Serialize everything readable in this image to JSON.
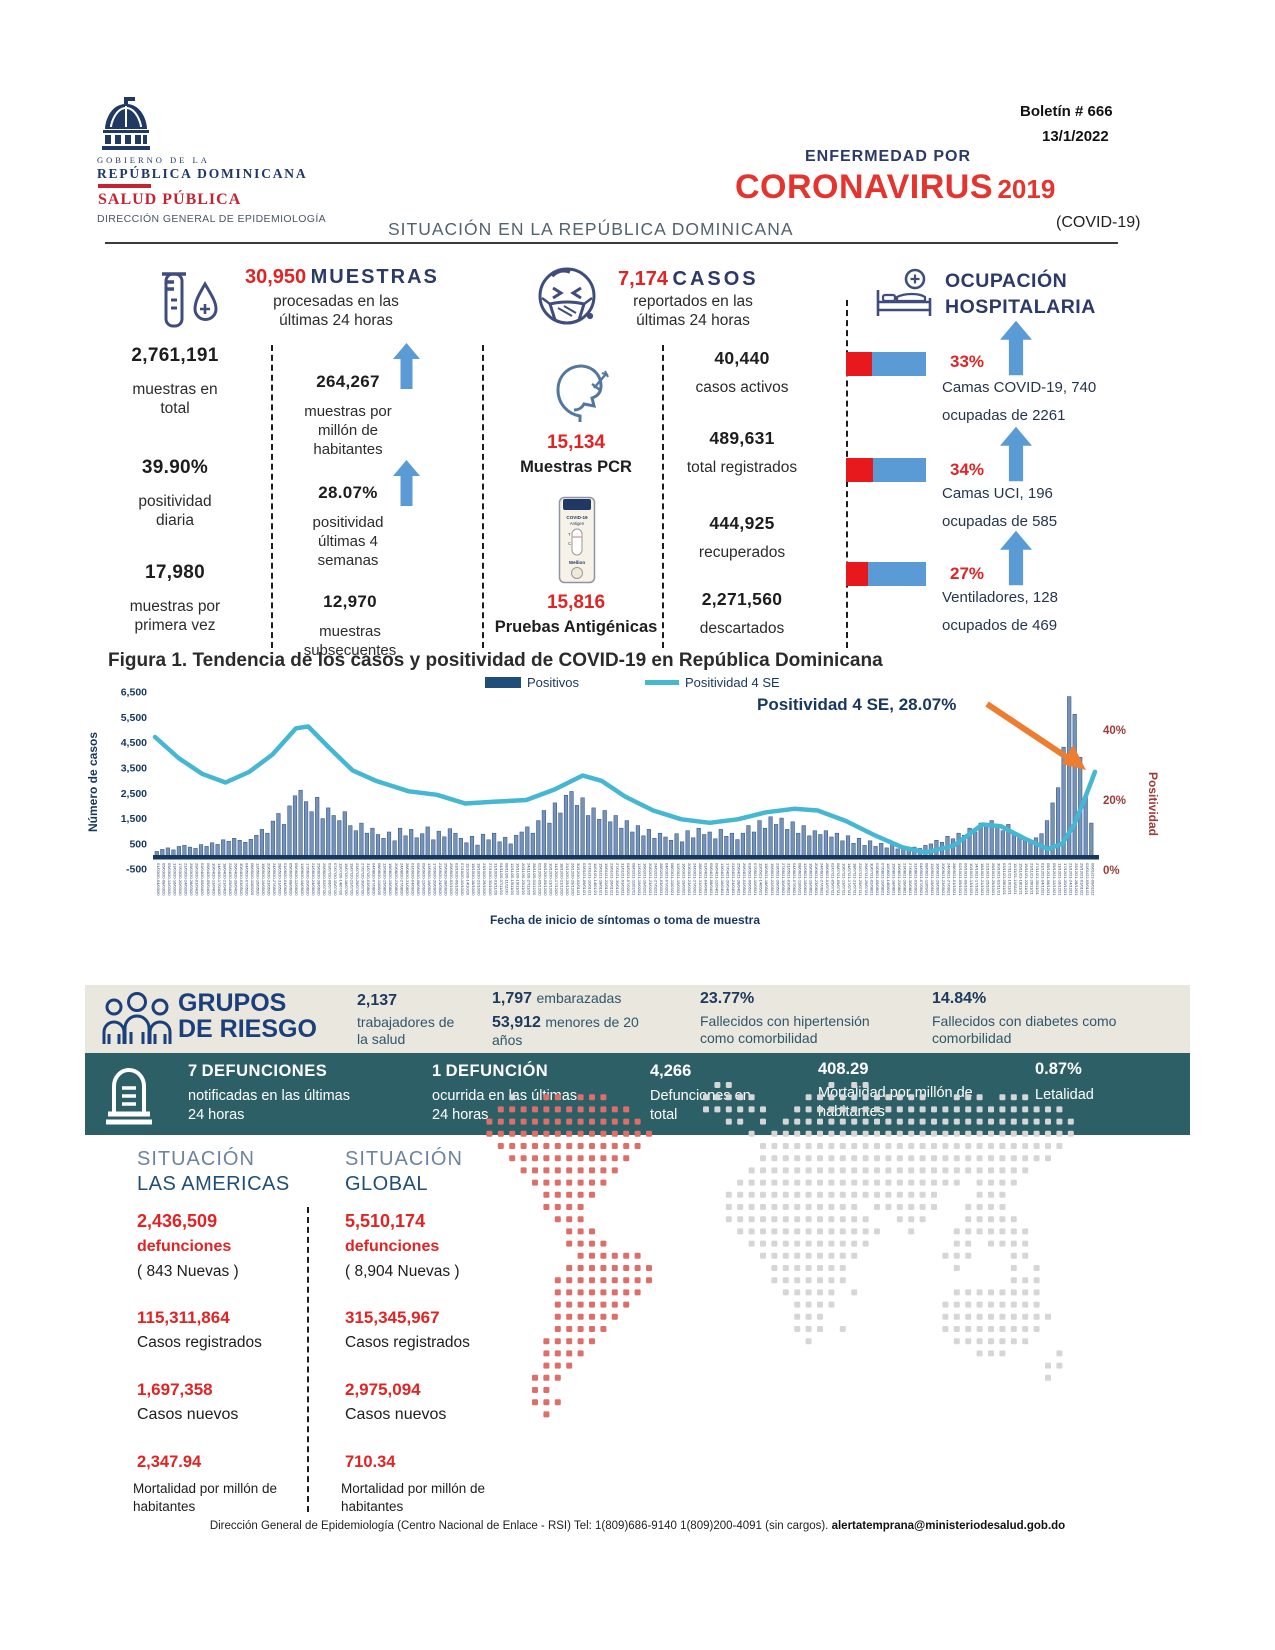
{
  "header": {
    "gov_line1": "GOBIERNO DE LA",
    "gov_line2": "REPÚBLICA DOMINICANA",
    "dept": "SALUD PÚBLICA",
    "subdept": "DIRECCIÓN GENERAL DE EPIDEMIOLOGÍA",
    "bulletin": "Boletín # 666",
    "date": "13/1/2022",
    "disease_line1": "ENFERMEDAD POR",
    "disease_line2": "CORONAVIRUS",
    "disease_year": "2019",
    "covid": "(COVID-19)",
    "situation_title": "SITUACIÓN EN LA REPÚBLICA DOMINICANA"
  },
  "muestras": {
    "headline_value": "30,950",
    "headline_label": "MUESTRAS",
    "headline_sub": "procesadas en las últimas 24 horas",
    "total_value": "2,761,191",
    "total_label": "muestras en total",
    "daily_pos_value": "39.90%",
    "daily_pos_label": "positividad diaria",
    "first_value": "17,980",
    "first_label": "muestras por primera vez",
    "per_million_value": "264,267",
    "per_million_label": "muestras por millón de habitantes",
    "pos4w_value": "28.07%",
    "pos4w_label": "positividad últimas 4 semanas",
    "subseq_value": "12,970",
    "subseq_label": "muestras subsecuentes"
  },
  "casos": {
    "headline_value": "7,174",
    "headline_label": "CASOS",
    "headline_sub": "reportados en las últimas 24 horas",
    "pcr_value": "15,134",
    "pcr_label": "Muestras PCR",
    "antigen_value": "15,816",
    "antigen_label": "Pruebas Antigénicas",
    "right": [
      {
        "value": "40,440",
        "label": "casos activos"
      },
      {
        "value": "489,631",
        "label": "total registrados"
      },
      {
        "value": "444,925",
        "label": "recuperados"
      },
      {
        "value": "2,271,560",
        "label": "descartados"
      }
    ]
  },
  "ocupacion": {
    "title": "OCUPACIÓN HOSPITALARIA",
    "items": [
      {
        "pct": "33%",
        "pct_value": 33,
        "line1": "Camas COVID-19,  740",
        "line2": "ocupadas de 2261"
      },
      {
        "pct": "34%",
        "pct_value": 34,
        "line1": "Camas UCI,  196",
        "line2": "ocupadas de 585"
      },
      {
        "pct": "27%",
        "pct_value": 27,
        "line1": "Ventiladores, 128",
        "line2": "ocupados de 469"
      }
    ]
  },
  "chart_data": {
    "type": "bar+line",
    "title": "Figura 1. Tendencia de los casos y positividad de COVID-19 en República Dominicana",
    "ylabel": "Número de casos",
    "y2label": "Positividad",
    "xlabel": "Fecha de inicio de síntomas o toma de muestra",
    "legend": [
      "Positivos",
      "Positividad 4 SE"
    ],
    "annotation": "Positividad 4 SE, 28.07%",
    "y_ticks": [
      "6,500",
      "5,500",
      "4,500",
      "3,500",
      "2,500",
      "1,500",
      "500",
      "-500"
    ],
    "y_tick_values": [
      6500,
      5500,
      4500,
      3500,
      2500,
      1500,
      500,
      -500
    ],
    "y2_ticks": [
      "40%",
      "20%",
      "0%"
    ],
    "y2_tick_values": [
      40,
      20,
      0
    ],
    "x_range": "fechas diarias mar 2020 - ene 2022",
    "bars_name": "Positivos",
    "bars": [
      180,
      260,
      320,
      240,
      380,
      420,
      350,
      300,
      450,
      380,
      520,
      460,
      640,
      580,
      700,
      620,
      540,
      660,
      820,
      1050,
      900,
      1380,
      1680,
      1250,
      1980,
      2380,
      2600,
      2150,
      1750,
      2320,
      1480,
      1900,
      1600,
      1400,
      1750,
      1200,
      1000,
      1300,
      900,
      1100,
      850,
      700,
      950,
      600,
      1100,
      800,
      1050,
      720,
      880,
      1150,
      640,
      980,
      760,
      1080,
      900,
      700,
      520,
      780,
      430,
      860,
      640,
      900,
      560,
      740,
      480,
      820,
      950,
      1150,
      900,
      1400,
      1800,
      1300,
      2100,
      1700,
      2400,
      2550,
      2000,
      2300,
      1600,
      1900,
      1450,
      1800,
      1350,
      1600,
      1100,
      1400,
      950,
      1200,
      800,
      1050,
      700,
      900,
      750,
      620,
      880,
      560,
      1000,
      720,
      1100,
      850,
      950,
      680,
      1050,
      780,
      900,
      650,
      900,
      1200,
      950,
      1400,
      1100,
      1550,
      1250,
      1500,
      1050,
      1350,
      900,
      1200,
      800,
      1000,
      850,
      1000,
      750,
      900,
      600,
      800,
      500,
      700,
      420,
      600,
      380,
      500,
      320,
      450,
      280,
      380,
      250,
      350,
      300,
      420,
      480,
      620,
      540,
      780,
      680,
      900,
      820,
      1100,
      950,
      1300,
      1150,
      1400,
      1200,
      1000,
      1250,
      950,
      800,
      680,
      580,
      720,
      880,
      1400,
      2100,
      2700,
      4300,
      6300,
      5600,
      3900,
      2400,
      1300
    ],
    "line_name": "Positividad 4 SE",
    "line_points": [
      [
        0,
        38
      ],
      [
        0.025,
        32
      ],
      [
        0.05,
        27.5
      ],
      [
        0.075,
        25
      ],
      [
        0.1,
        28
      ],
      [
        0.125,
        33
      ],
      [
        0.15,
        40.5
      ],
      [
        0.163,
        41
      ],
      [
        0.185,
        35
      ],
      [
        0.21,
        28.5
      ],
      [
        0.235,
        25.5
      ],
      [
        0.27,
        22.5
      ],
      [
        0.3,
        21.5
      ],
      [
        0.33,
        19
      ],
      [
        0.36,
        19.5
      ],
      [
        0.395,
        20
      ],
      [
        0.425,
        23
      ],
      [
        0.455,
        27
      ],
      [
        0.475,
        25.5
      ],
      [
        0.5,
        21
      ],
      [
        0.53,
        17
      ],
      [
        0.56,
        14.5
      ],
      [
        0.59,
        13.5
      ],
      [
        0.62,
        14.5
      ],
      [
        0.65,
        16.5
      ],
      [
        0.68,
        17.5
      ],
      [
        0.705,
        17
      ],
      [
        0.735,
        14
      ],
      [
        0.765,
        10
      ],
      [
        0.795,
        6.5
      ],
      [
        0.82,
        5
      ],
      [
        0.85,
        7
      ],
      [
        0.88,
        13
      ],
      [
        0.9,
        12.5
      ],
      [
        0.925,
        9
      ],
      [
        0.95,
        6
      ],
      [
        0.965,
        7.5
      ],
      [
        0.978,
        13
      ],
      [
        0.99,
        21
      ],
      [
        1,
        28.07
      ]
    ],
    "line_end_value": 28.07
  },
  "grupos": {
    "title1": "GRUPOS",
    "title2": "DE RIESGO",
    "workers_value": "2,137",
    "workers_label": "trabajadores de la salud",
    "pregnant_value": "1,797",
    "pregnant_label": "embarazadas",
    "minors_value": "53,912",
    "minors_label": "menores de 20 años",
    "hyper_value": "23.77%",
    "hyper_label": "Fallecidos con hipertensión como comorbilidad",
    "diab_value": "14.84%",
    "diab_label": "Fallecidos con diabetes como comorbilidad"
  },
  "defunciones": {
    "d24_value": "7",
    "d24_title": "DEFUNCIONES",
    "d24_label": "notificadas en las últimas 24 horas",
    "o24_value": "1",
    "o24_title": "DEFUNCIÓN",
    "o24_label": "ocurrida en las últimas 24 horas",
    "total_value": "4,266",
    "total_label": "Defunciones en total",
    "mort_value": "408.29",
    "mort_label": "Mortalidad por millón de habitantes",
    "let_value": "0.87%",
    "let_label": "Letalidad"
  },
  "americas": {
    "title1": "SITUACIÓN",
    "title2": "LAS AMERICAS",
    "deaths": "2,436,509",
    "deaths_label": "defunciones",
    "new_deaths": "( 843 Nuevas )",
    "cases": "115,311,864",
    "cases_label": "Casos registrados",
    "new_cases": "1,697,358",
    "new_cases_label": "Casos nuevos",
    "mortality": "2,347.94",
    "mortality_label": "Mortalidad por millón de habitantes"
  },
  "global": {
    "title1": "SITUACIÓN",
    "title2": "GLOBAL",
    "deaths": "5,510,174",
    "deaths_label": "defunciones",
    "new_deaths": "( 8,904 Nuevas )",
    "cases": "315,345,967",
    "cases_label": "Casos registrados",
    "new_cases": "2,975,094",
    "new_cases_label": "Casos nuevos",
    "mortality": "710.34",
    "mortality_label": "Mortalidad por millón de habitantes"
  },
  "footer": {
    "text": "Dirección General de Epidemiología (Centro Nacional de Enlace - RSI) Tel: 1(809)686-9140   1(809)200-4091 (sin cargos).",
    "email": "alertatemprana@ministeriodesalud.gob.do"
  },
  "colors": {
    "navy": "#2c3a68",
    "deep_navy": "#17375e",
    "red": "#e02424",
    "bar_steel_blue": "#7693b7",
    "line_light_blue": "#45b7d2",
    "teal_band": "#2d5f66",
    "beige_band": "#eae7de",
    "arrow_blue": "#5b9bd5",
    "occupancy_red": "#e8191c",
    "right_axis_brick": "#9e3b39",
    "orange_annotation": "#ed7d31",
    "map_americas_red": "#dd6f68",
    "map_world_gray": "#d6d6d6"
  }
}
